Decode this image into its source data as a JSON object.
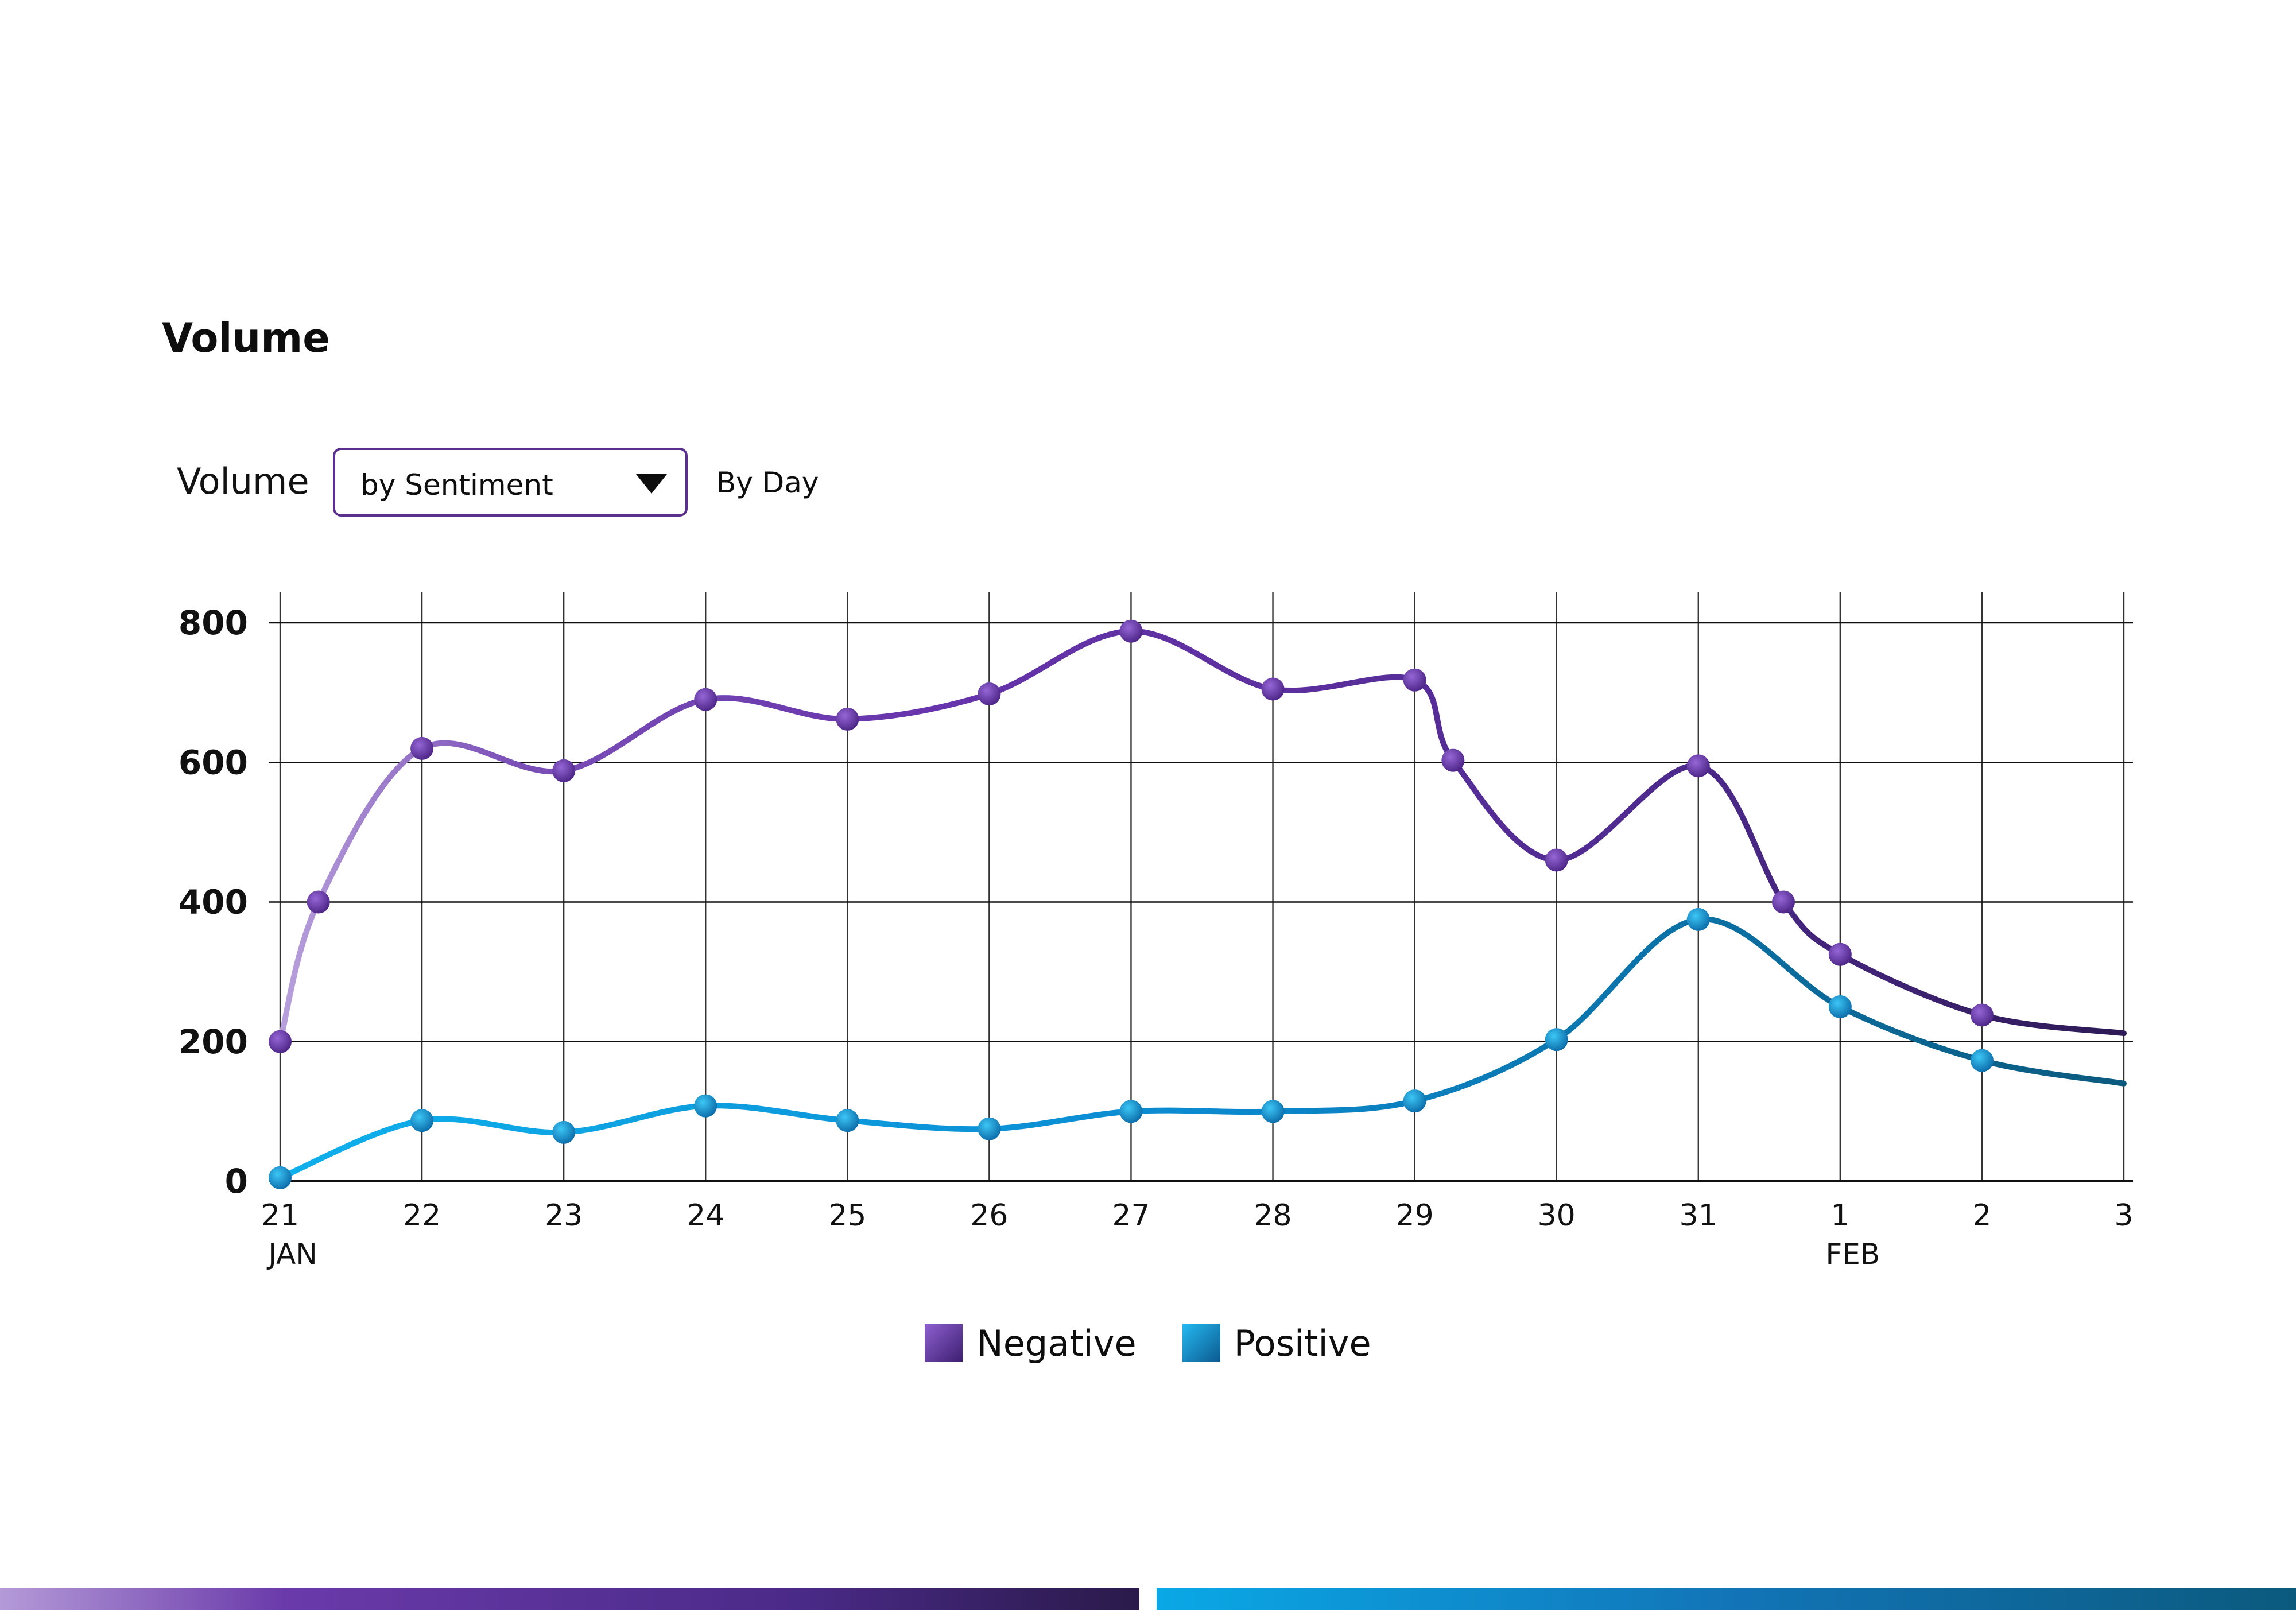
{
  "page": {
    "title": "Volume"
  },
  "controls": {
    "label": "Volume",
    "metric_select": {
      "value": "by Sentiment"
    },
    "period": "By Day"
  },
  "legend": [
    {
      "label": "Negative",
      "color": "#5b2d9c"
    },
    {
      "label": "Positive",
      "color": "#0b83c9"
    }
  ],
  "chart_data": {
    "type": "line",
    "title": "",
    "xlabel": "",
    "ylabel": "",
    "categories": [
      "21",
      "22",
      "23",
      "24",
      "25",
      "26",
      "27",
      "28",
      "29",
      "30",
      "31",
      "1",
      "2",
      "3"
    ],
    "month_labels": [
      {
        "at": "21",
        "label": "JAN"
      },
      {
        "at": "1",
        "label": "FEB"
      }
    ],
    "ylim": [
      0,
      800
    ],
    "yticks": [
      0,
      200,
      400,
      600,
      800
    ],
    "grid": true,
    "legend_position": "bottom-center",
    "series": [
      {
        "name": "Negative",
        "color": "#5b2d9c",
        "points": [
          [
            0,
            200
          ],
          [
            0.27,
            400
          ],
          [
            1,
            620
          ],
          [
            2,
            588
          ],
          [
            3,
            690
          ],
          [
            4,
            662
          ],
          [
            5,
            698
          ],
          [
            6,
            788
          ],
          [
            7,
            705
          ],
          [
            8,
            718
          ],
          [
            8.27,
            603
          ],
          [
            9,
            460
          ],
          [
            10,
            595
          ],
          [
            10.6,
            400
          ],
          [
            11,
            325
          ],
          [
            12,
            238
          ],
          [
            13,
            212
          ]
        ],
        "markers": [
          true,
          true,
          true,
          true,
          true,
          true,
          true,
          true,
          true,
          true,
          true,
          true,
          true,
          true,
          true,
          true,
          false
        ]
      },
      {
        "name": "Positive",
        "color": "#0b83c9",
        "points": [
          [
            0,
            5
          ],
          [
            1,
            87
          ],
          [
            2,
            70
          ],
          [
            3,
            108
          ],
          [
            4,
            87
          ],
          [
            5,
            75
          ],
          [
            6,
            100
          ],
          [
            7,
            100
          ],
          [
            8,
            115
          ],
          [
            9,
            203
          ],
          [
            10,
            375
          ],
          [
            11,
            250
          ],
          [
            12,
            173
          ],
          [
            13,
            140
          ]
        ],
        "markers": [
          true,
          true,
          true,
          true,
          true,
          true,
          true,
          true,
          true,
          true,
          true,
          true,
          true,
          false
        ]
      }
    ]
  }
}
